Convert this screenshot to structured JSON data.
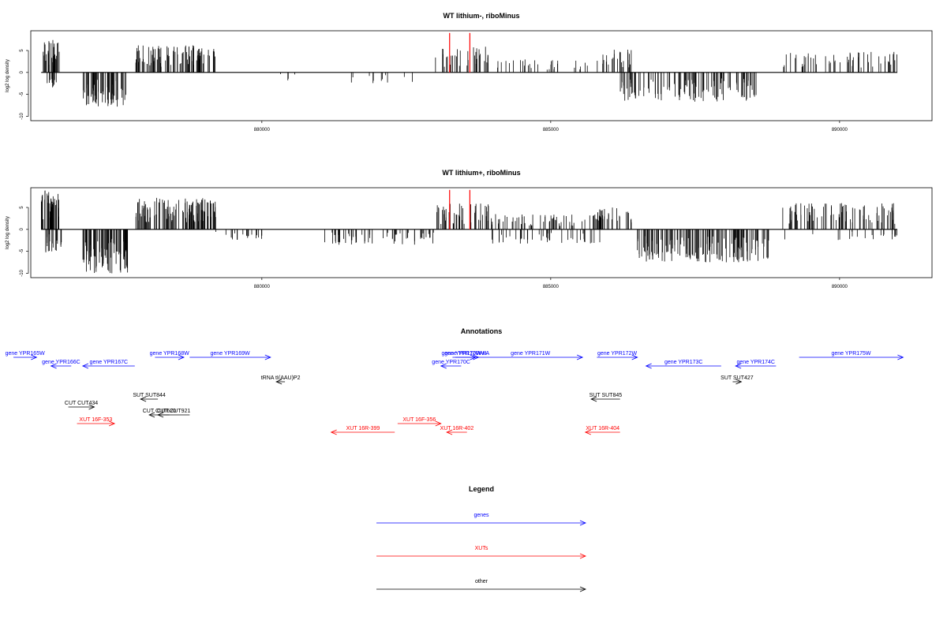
{
  "chart_data": [
    {
      "type": "bar",
      "title": "WT lithium-, riboMinus",
      "ylabel": "log2 log density",
      "xlim": [
        876000,
        891600
      ],
      "ylim": [
        -11,
        9.5
      ],
      "xticks": [
        880000,
        885000,
        890000
      ],
      "yticks": [
        -10,
        -5,
        0,
        5
      ],
      "bar_color": "#000000",
      "highlight_color": "#ff0000",
      "highlight_bars": [
        {
          "x": 883250,
          "y": 9
        },
        {
          "x": 883600,
          "y": 9
        }
      ],
      "series": [
        {
          "region": [
            876180,
            876500
          ],
          "sign": 1,
          "max": 7.4,
          "density": 32
        },
        {
          "region": [
            876280,
            876480
          ],
          "sign": -1,
          "max": 3.5,
          "density": 10
        },
        {
          "region": [
            876900,
            877650
          ],
          "sign": -1,
          "max": 7.8,
          "density": 65
        },
        {
          "region": [
            877800,
            879200
          ],
          "sign": 1,
          "max": 6.2,
          "density": 90
        },
        {
          "region": [
            880300,
            880600
          ],
          "sign": -1,
          "max": 1.5,
          "density": 3
        },
        {
          "region": [
            881500,
            882700
          ],
          "sign": -1,
          "max": 2.5,
          "density": 10
        },
        {
          "region": [
            883000,
            883950
          ],
          "sign": 1,
          "max": 6.0,
          "density": 35
        },
        {
          "region": [
            883950,
            885800
          ],
          "sign": 1,
          "max": 3.0,
          "density": 30
        },
        {
          "region": [
            885800,
            886400
          ],
          "sign": 1,
          "max": 5.2,
          "density": 25
        },
        {
          "region": [
            886200,
            888600
          ],
          "sign": -1,
          "max": 6.8,
          "density": 110
        },
        {
          "region": [
            889000,
            891000
          ],
          "sign": 1,
          "max": 4.8,
          "density": 55
        }
      ],
      "series_1": [
        {
          "x": 880450,
          "y": -1.8
        },
        {
          "x": 881550,
          "y": -2.3
        }
      ]
    },
    {
      "type": "bar",
      "title": "WT lithium+, riboMinus",
      "ylabel": "log2 log density",
      "xlim": [
        876000,
        891600
      ],
      "ylim": [
        -11,
        9.5
      ],
      "xticks": [
        880000,
        885000,
        890000
      ],
      "yticks": [
        -10,
        -5,
        0,
        5
      ],
      "bar_color": "#000000",
      "highlight_color": "#ff0000",
      "highlight_bars": [
        {
          "x": 883250,
          "y": 9
        },
        {
          "x": 883600,
          "y": 9
        }
      ],
      "series": [
        {
          "region": [
            876180,
            876500
          ],
          "sign": 1,
          "max": 9.0,
          "density": 40
        },
        {
          "region": [
            876250,
            876550
          ],
          "sign": -1,
          "max": 5.5,
          "density": 20
        },
        {
          "region": [
            876900,
            877700
          ],
          "sign": -1,
          "max": 10.2,
          "density": 80
        },
        {
          "region": [
            877800,
            879200
          ],
          "sign": 1,
          "max": 7.2,
          "density": 120
        },
        {
          "region": [
            879200,
            880200
          ],
          "sign": -1,
          "max": 2.5,
          "density": 20
        },
        {
          "region": [
            881000,
            883000
          ],
          "sign": -1,
          "max": 3.5,
          "density": 60
        },
        {
          "region": [
            883000,
            883950
          ],
          "sign": 1,
          "max": 6.0,
          "density": 45
        },
        {
          "region": [
            883950,
            885900
          ],
          "sign": 1,
          "max": 3.5,
          "density": 60
        },
        {
          "region": [
            883950,
            885900
          ],
          "sign": -1,
          "max": 3.5,
          "density": 40
        },
        {
          "region": [
            885800,
            886400
          ],
          "sign": 1,
          "max": 5.0,
          "density": 30
        },
        {
          "region": [
            886500,
            888800
          ],
          "sign": -1,
          "max": 7.5,
          "density": 150
        },
        {
          "region": [
            889000,
            891000
          ],
          "sign": 1,
          "max": 6.0,
          "density": 80
        },
        {
          "region": [
            889000,
            891000
          ],
          "sign": -1,
          "max": 2.5,
          "density": 20
        }
      ]
    }
  ],
  "annotations": {
    "title": "Annotations",
    "items": [
      {
        "label": "gene YPR165W",
        "x1": 875700,
        "x2": 876100,
        "dir": "right",
        "row": 0,
        "color": "#0000ff"
      },
      {
        "label": "gene YPR166C",
        "x1": 876350,
        "x2": 876700,
        "dir": "left",
        "row": 1,
        "color": "#0000ff"
      },
      {
        "label": "gene YPR167C",
        "x1": 876900,
        "x2": 877800,
        "dir": "left",
        "row": 1,
        "color": "#0000ff"
      },
      {
        "label": "gene YPR168W",
        "x1": 878150,
        "x2": 878650,
        "dir": "right",
        "row": 0,
        "color": "#0000ff"
      },
      {
        "label": "gene YPR169W",
        "x1": 878750,
        "x2": 880150,
        "dir": "right",
        "row": 0,
        "color": "#0000ff"
      },
      {
        "label": "gene YPR170W-A",
        "x1": 883350,
        "x2": 883750,
        "dir": "right",
        "row": 0,
        "color": "#0000ff"
      },
      {
        "label": "gene YPR170W-B",
        "x1": 883300,
        "x2": 883700,
        "dir": "right",
        "row": 0,
        "color": "#0000ff"
      },
      {
        "label": "gene YPR170C",
        "x1": 883100,
        "x2": 883450,
        "dir": "left",
        "row": 1,
        "color": "#0000ff"
      },
      {
        "label": "gene YPR171W",
        "x1": 883750,
        "x2": 885550,
        "dir": "right",
        "row": 0,
        "color": "#0000ff"
      },
      {
        "label": "gene YPR172W",
        "x1": 885800,
        "x2": 886500,
        "dir": "right",
        "row": 0,
        "color": "#0000ff"
      },
      {
        "label": "gene YPR173C",
        "x1": 886650,
        "x2": 887950,
        "dir": "left",
        "row": 1,
        "color": "#0000ff"
      },
      {
        "label": "gene YPR174C",
        "x1": 888200,
        "x2": 888900,
        "dir": "left",
        "row": 1,
        "color": "#0000ff"
      },
      {
        "label": "gene YPR175W",
        "x1": 889300,
        "x2": 891100,
        "dir": "right",
        "row": 0,
        "color": "#0000ff"
      },
      {
        "label": "tRNA tI(AAU)P2",
        "x1": 880250,
        "x2": 880400,
        "dir": "left",
        "row": 2,
        "color": "#000000"
      },
      {
        "label": "SUT SUT844",
        "x1": 877900,
        "x2": 878200,
        "dir": "left",
        "row": 3,
        "color": "#000000"
      },
      {
        "label": "SUT SUT845",
        "x1": 885700,
        "x2": 886200,
        "dir": "left",
        "row": 3,
        "color": "#000000"
      },
      {
        "label": "SUT SUT427",
        "x1": 888150,
        "x2": 888300,
        "dir": "right",
        "row": 2,
        "color": "#000000"
      },
      {
        "label": "CUT CUT434",
        "x1": 876650,
        "x2": 877100,
        "dir": "right",
        "row": 4,
        "color": "#000000"
      },
      {
        "label": "CUT CUT620",
        "x1": 878050,
        "x2": 878400,
        "dir": "left",
        "row": 5,
        "color": "#000000"
      },
      {
        "label": "CUT CUT921",
        "x1": 878200,
        "x2": 878750,
        "dir": "left",
        "row": 5,
        "color": "#000000"
      },
      {
        "label": "XUT 16F-353",
        "x1": 876800,
        "x2": 877450,
        "dir": "right",
        "row": 6,
        "color": "#ff0000"
      },
      {
        "label": "XUT 16R-399",
        "x1": 881200,
        "x2": 882300,
        "dir": "left",
        "row": 7,
        "color": "#ff0000"
      },
      {
        "label": "XUT 16F-356",
        "x1": 882350,
        "x2": 883100,
        "dir": "right",
        "row": 6,
        "color": "#ff0000"
      },
      {
        "label": "XUT 16R-402",
        "x1": 883200,
        "x2": 883550,
        "dir": "left",
        "row": 7,
        "color": "#ff0000"
      },
      {
        "label": "XUT 16R-404",
        "x1": 885600,
        "x2": 886200,
        "dir": "left",
        "row": 7,
        "color": "#ff0000"
      }
    ]
  },
  "legend": {
    "title": "Legend",
    "items": [
      {
        "label": "genes",
        "color": "#0000ff"
      },
      {
        "label": "XUTs",
        "color": "#ff0000"
      },
      {
        "label": "other",
        "color": "#000000"
      }
    ]
  }
}
